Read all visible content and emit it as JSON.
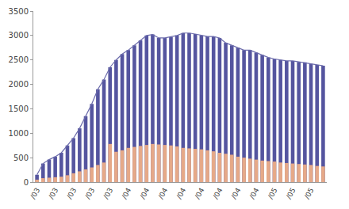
{
  "chart_data": {
    "type": "bar",
    "categories": [
      "/03",
      null,
      null,
      "/03",
      null,
      null,
      "/03",
      null,
      null,
      "/03",
      null,
      null,
      "/03",
      null,
      null,
      "/04",
      null,
      null,
      "/04",
      null,
      null,
      "/04",
      null,
      null,
      "/04",
      null,
      null,
      "/04",
      null,
      null,
      "/04",
      null,
      null,
      "/04",
      null,
      null,
      "/04",
      null,
      null,
      "/05",
      null,
      null,
      "/05",
      null,
      null,
      "/05",
      null,
      null
    ],
    "series": [
      {
        "color": "#55559f",
        "values": [
          150,
          380,
          460,
          520,
          600,
          750,
          900,
          1100,
          1350,
          1600,
          1900,
          2100,
          2350,
          2500,
          2620,
          2700,
          2800,
          2900,
          3000,
          3020,
          2950,
          2950,
          2970,
          3000,
          3050,
          3050,
          3030,
          3000,
          2980,
          2980,
          2950,
          2850,
          2800,
          2750,
          2700,
          2700,
          2650,
          2600,
          2550,
          2520,
          2500,
          2480,
          2480,
          2460,
          2450,
          2420,
          2400,
          2380
        ]
      },
      {
        "color": "#e6a988",
        "values": [
          50,
          80,
          90,
          100,
          110,
          140,
          180,
          220,
          260,
          300,
          350,
          400,
          780,
          620,
          650,
          700,
          720,
          740,
          760,
          780,
          770,
          760,
          750,
          730,
          700,
          690,
          680,
          670,
          650,
          630,
          600,
          580,
          560,
          520,
          500,
          480,
          460,
          440,
          430,
          420,
          400,
          390,
          380,
          370,
          360,
          350,
          330,
          320
        ]
      },
      {
        "type": "line",
        "color": "#6b6bab",
        "values": [
          150,
          380,
          460,
          520,
          600,
          750,
          900,
          1100,
          1350,
          1600,
          1900,
          2100,
          2350,
          2500,
          2620,
          2700,
          2800,
          2900,
          3000,
          3020,
          2950,
          2950,
          2970,
          3000,
          3050,
          3050,
          3030,
          3000,
          2980,
          2980,
          2950,
          2850,
          2800,
          2750,
          2700,
          2700,
          2650,
          2600,
          2550,
          2520,
          2500,
          2480,
          2480,
          2460,
          2450,
          2420,
          2400,
          2380
        ]
      }
    ],
    "ylim": [
      0,
      3500
    ],
    "yticks": [
      0,
      500,
      1000,
      1500,
      2000,
      2500,
      3000,
      3500
    ],
    "grid": false
  }
}
